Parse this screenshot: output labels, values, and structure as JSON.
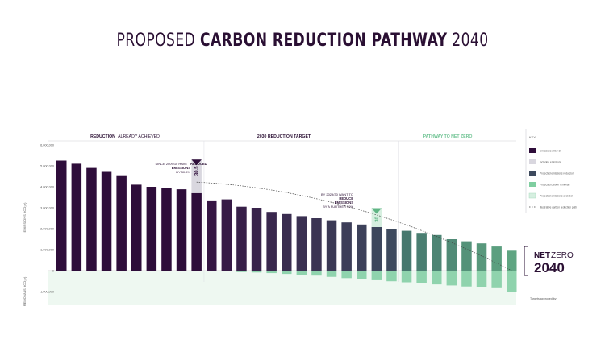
{
  "title": {
    "prefix": "PROPOSED",
    "bold": "CARBON REDUCTION PATHWAY",
    "suffix": "2040"
  },
  "sections": {
    "achieved_bold": "REDUCTION",
    "achieved_rest": "ALREADY ACHIEVED",
    "target_2030": "2030 REDUCTION TARGET",
    "net_zero": "PATHWAY TO NET ZERO"
  },
  "annotations": {
    "a1_line1": "SINCE 2009/10 HAVE",
    "a1_bold": "REDUCED",
    "a1_line2": "EMISSIONS",
    "a1_line3": "BY 30.5%",
    "a1_badge": "30.5",
    "a2_line1": "BY 2029/30 WANT TO",
    "a2_bold": "REDUCE",
    "a2_line2": "EMISSIONS",
    "a2_line3": "BY A FURTHER 30%",
    "a2_badge": "30"
  },
  "net_zero_badge": {
    "net": "NET",
    "zero": "ZERO",
    "year": "2040"
  },
  "key": {
    "title": "KEY",
    "items": [
      {
        "label": "Emissions 2010-19",
        "color": "#2e0d3a"
      },
      {
        "label": "Included emissions",
        "color": "#d9d7df"
      },
      {
        "label": "Projected emissions reduction",
        "color": "#3e4a5e"
      },
      {
        "label": "Projected carbon removal",
        "color": "#7fcea0"
      },
      {
        "label": "Projected emissions avoided",
        "color": "#d6efe0"
      },
      {
        "label": "Illustrative carbon reduction path",
        "color": "#444444"
      }
    ]
  },
  "axes": {
    "y_top_label": "EMISSIONS (tCO₂e)",
    "y_bottom_label": "REMOVALS (tCO₂e)",
    "footnote": "Targets approved by"
  },
  "chart_data": {
    "type": "bar",
    "title": "PROPOSED CARBON REDUCTION PATHWAY 2040",
    "ylim": [
      -1200000,
      6000000
    ],
    "y_ticks": [
      {
        "value": 6000000,
        "label": "6,000,000"
      },
      {
        "value": 5000000,
        "label": "5,000,000"
      },
      {
        "value": 4000000,
        "label": "4,000,000"
      },
      {
        "value": 3000000,
        "label": "3,000,000"
      },
      {
        "value": 2000000,
        "label": "2,000,000"
      },
      {
        "value": 1000000,
        "label": "1,000,000"
      },
      {
        "value": 0,
        "label": "0"
      },
      {
        "value": -1000000,
        "label": "-1,000,000"
      }
    ],
    "emissions": [
      5250000,
      5100000,
      4900000,
      4750000,
      4550000,
      4100000,
      4000000,
      3950000,
      3880000,
      3700000,
      3350000,
      3400000,
      3050000,
      3000000,
      2800000,
      2700000,
      2600000,
      2500000,
      2400000,
      2300000,
      2200000,
      2080000,
      2000000,
      1900000,
      1800000,
      1700000,
      1500000,
      1400000,
      1300000,
      1150000,
      950000
    ],
    "removals": [
      0,
      0,
      0,
      0,
      0,
      0,
      0,
      0,
      0,
      0,
      0,
      0,
      -30000,
      -50000,
      -80000,
      -120000,
      -160000,
      -200000,
      -260000,
      -320000,
      -380000,
      -420000,
      -470000,
      -520000,
      -570000,
      -620000,
      -670000,
      -720000,
      -760000,
      -800000,
      -1000000
    ],
    "phase_breaks": [
      10,
      23
    ],
    "highlight_bar_1": 9,
    "highlight_value_1": 1600000,
    "highlight_bar_2": 21,
    "highlight_value_2": 900000
  }
}
